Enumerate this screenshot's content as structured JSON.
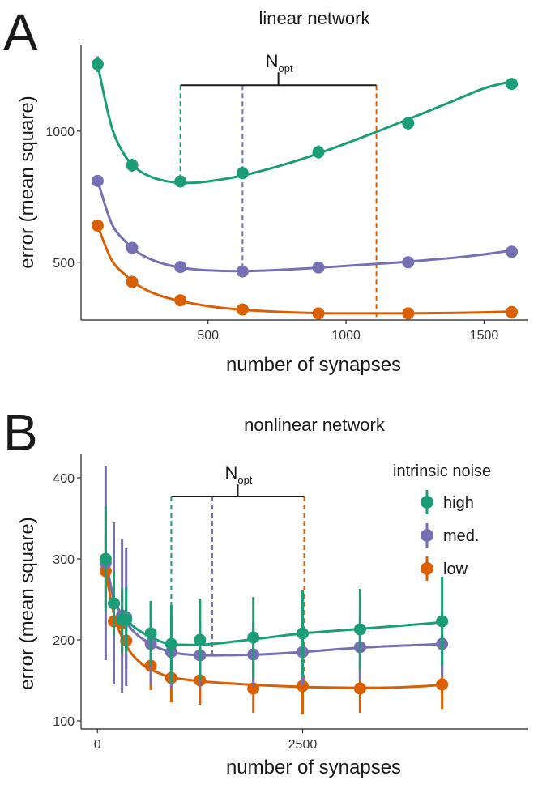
{
  "chart_data": [
    {
      "panel": "A",
      "type": "line",
      "title": "linear network",
      "xlabel": "number of synapses",
      "ylabel": "error (mean square)",
      "xlim": [
        40,
        1660
      ],
      "ylim": [
        280,
        1330
      ],
      "xticks": [
        500,
        1000,
        1500
      ],
      "xtick_labels": [
        "500",
        "1000",
        "1500"
      ],
      "yticks": [
        500,
        1000
      ],
      "ytick_labels": [
        "500",
        "1000"
      ],
      "x": [
        100,
        225,
        400,
        625,
        900,
        1225,
        1600
      ],
      "series": [
        {
          "name": "high",
          "color": "#1b9e77",
          "values": [
            1255,
            870,
            808,
            840,
            920,
            1030,
            1180
          ],
          "err": [
            30,
            25,
            15,
            20,
            25,
            25,
            12
          ]
        },
        {
          "name": "med.",
          "color": "#7570b3",
          "values": [
            810,
            555,
            482,
            465,
            480,
            500,
            540
          ],
          "err": [
            12,
            10,
            8,
            8,
            8,
            8,
            8
          ]
        },
        {
          "name": "low",
          "color": "#d95f02",
          "values": [
            640,
            425,
            355,
            320,
            305,
            305,
            310
          ],
          "err": [
            8,
            8,
            6,
            6,
            6,
            6,
            6
          ]
        }
      ],
      "curves": [
        {
          "name": "high",
          "x": [
            100,
            150,
            200,
            250,
            300,
            350,
            400,
            450,
            500,
            600,
            700,
            800,
            900,
            1000,
            1100,
            1200,
            1300,
            1400,
            1500,
            1600
          ],
          "y": [
            1255,
            1020,
            905,
            850,
            823,
            809,
            803,
            803,
            808,
            825,
            850,
            880,
            915,
            953,
            993,
            1035,
            1077,
            1120,
            1163,
            1190
          ]
        },
        {
          "name": "med.",
          "x": [
            100,
            150,
            200,
            250,
            300,
            350,
            400,
            450,
            500,
            600,
            700,
            800,
            900,
            1000,
            1100,
            1200,
            1300,
            1400,
            1500,
            1600
          ],
          "y": [
            812,
            650,
            580,
            535,
            508,
            491,
            480,
            473,
            469,
            466,
            468,
            473,
            479,
            486,
            493,
            500,
            509,
            518,
            530,
            545
          ]
        },
        {
          "name": "low",
          "x": [
            100,
            150,
            200,
            250,
            300,
            350,
            400,
            500,
            600,
            700,
            800,
            900,
            1000,
            1100,
            1200,
            1300,
            1400,
            1500,
            1600
          ],
          "y": [
            640,
            510,
            452,
            410,
            383,
            365,
            352,
            333,
            321,
            314,
            309,
            306,
            305,
            305,
            305,
            306,
            307,
            309,
            312
          ]
        }
      ],
      "nopt": {
        "label": "N",
        "sub": "opt",
        "bracket_y": 1175,
        "lines": [
          {
            "name": "high",
            "x": 400
          },
          {
            "name": "med.",
            "x": 625
          },
          {
            "name": "low",
            "x": 1110
          }
        ]
      }
    },
    {
      "panel": "B",
      "type": "line",
      "title": "nonlinear network",
      "xlabel": "number of synapses",
      "ylabel": "error (mean square)",
      "xlim": [
        -200,
        5250
      ],
      "ylim": [
        90,
        430
      ],
      "xticks": [
        0,
        2500
      ],
      "xtick_labels": [
        "0",
        "2500"
      ],
      "yticks": [
        100,
        200,
        300,
        400
      ],
      "ytick_labels": [
        "100",
        "200",
        "300",
        "400"
      ],
      "x": [
        100,
        225,
        400,
        625,
        900,
        1225,
        1600
      ],
      "series": [
        {
          "name": "high",
          "color": "#1b9e77",
          "x": [
            100,
            200,
            300,
            350,
            650,
            900,
            1250,
            1900,
            2500,
            3200,
            4200
          ],
          "values": [
            300,
            245,
            225,
            225,
            208,
            195,
            200,
            203,
            208,
            213,
            223
          ],
          "err": [
            65,
            40,
            40,
            40,
            40,
            48,
            50,
            50,
            53,
            50,
            55
          ]
        },
        {
          "name": "med.",
          "x": [
            100,
            200,
            300,
            350,
            650,
            900,
            1250,
            1900,
            2500,
            3200,
            4200
          ],
          "color": "#7570b3",
          "values": [
            295,
            245,
            230,
            228,
            195,
            185,
            181,
            182,
            185,
            191,
            195
          ],
          "err": [
            120,
            100,
            95,
            85,
            50,
            45,
            40,
            40,
            40,
            40,
            40
          ]
        },
        {
          "name": "low",
          "x": [
            100,
            200,
            300,
            350,
            650,
            900,
            1250,
            1900,
            2500,
            3200,
            4200
          ],
          "color": "#d95f02",
          "values": [
            285,
            223,
            220,
            199,
            168,
            153,
            150,
            140,
            143,
            140,
            145
          ],
          "err": [
            45,
            60,
            40,
            35,
            30,
            30,
            30,
            30,
            35,
            30,
            30
          ]
        }
      ],
      "curves": [
        {
          "name": "high",
          "x": [
            100,
            200,
            300,
            400,
            500,
            600,
            700,
            800,
            900,
            1000,
            1250,
            1500,
            2000,
            2500,
            3000,
            3500,
            4000,
            4200
          ],
          "y": [
            300,
            250,
            232,
            220,
            212,
            206,
            201,
            197,
            195,
            194,
            194,
            196,
            202,
            208,
            212,
            216,
            220,
            222
          ]
        },
        {
          "name": "med.",
          "x": [
            100,
            200,
            300,
            400,
            500,
            600,
            700,
            800,
            900,
            1000,
            1250,
            1500,
            2000,
            2500,
            3000,
            3500,
            4000,
            4200
          ],
          "y": [
            295,
            252,
            230,
            215,
            205,
            198,
            192,
            188,
            185,
            183,
            181,
            181,
            182,
            185,
            189,
            192,
            194,
            195
          ]
        },
        {
          "name": "low",
          "x": [
            100,
            200,
            300,
            400,
            500,
            600,
            700,
            800,
            900,
            1000,
            1250,
            1500,
            2000,
            2500,
            3000,
            3500,
            4000,
            4200
          ],
          "y": [
            285,
            232,
            203,
            185,
            174,
            166,
            161,
            157,
            154,
            152,
            149,
            147,
            144,
            142,
            141,
            141,
            143,
            145
          ]
        }
      ],
      "nopt": {
        "label": "N",
        "sub": "opt",
        "bracket_y": 377,
        "lines": [
          {
            "name": "high",
            "x": 900
          },
          {
            "name": "med.",
            "x": 1400
          },
          {
            "name": "low",
            "x": 2520
          }
        ]
      },
      "legend": {
        "title": "intrinsic noise",
        "position": "top-right",
        "entries": [
          "high",
          "med.",
          "low"
        ]
      }
    }
  ],
  "panel_letters": [
    "A",
    "B"
  ]
}
